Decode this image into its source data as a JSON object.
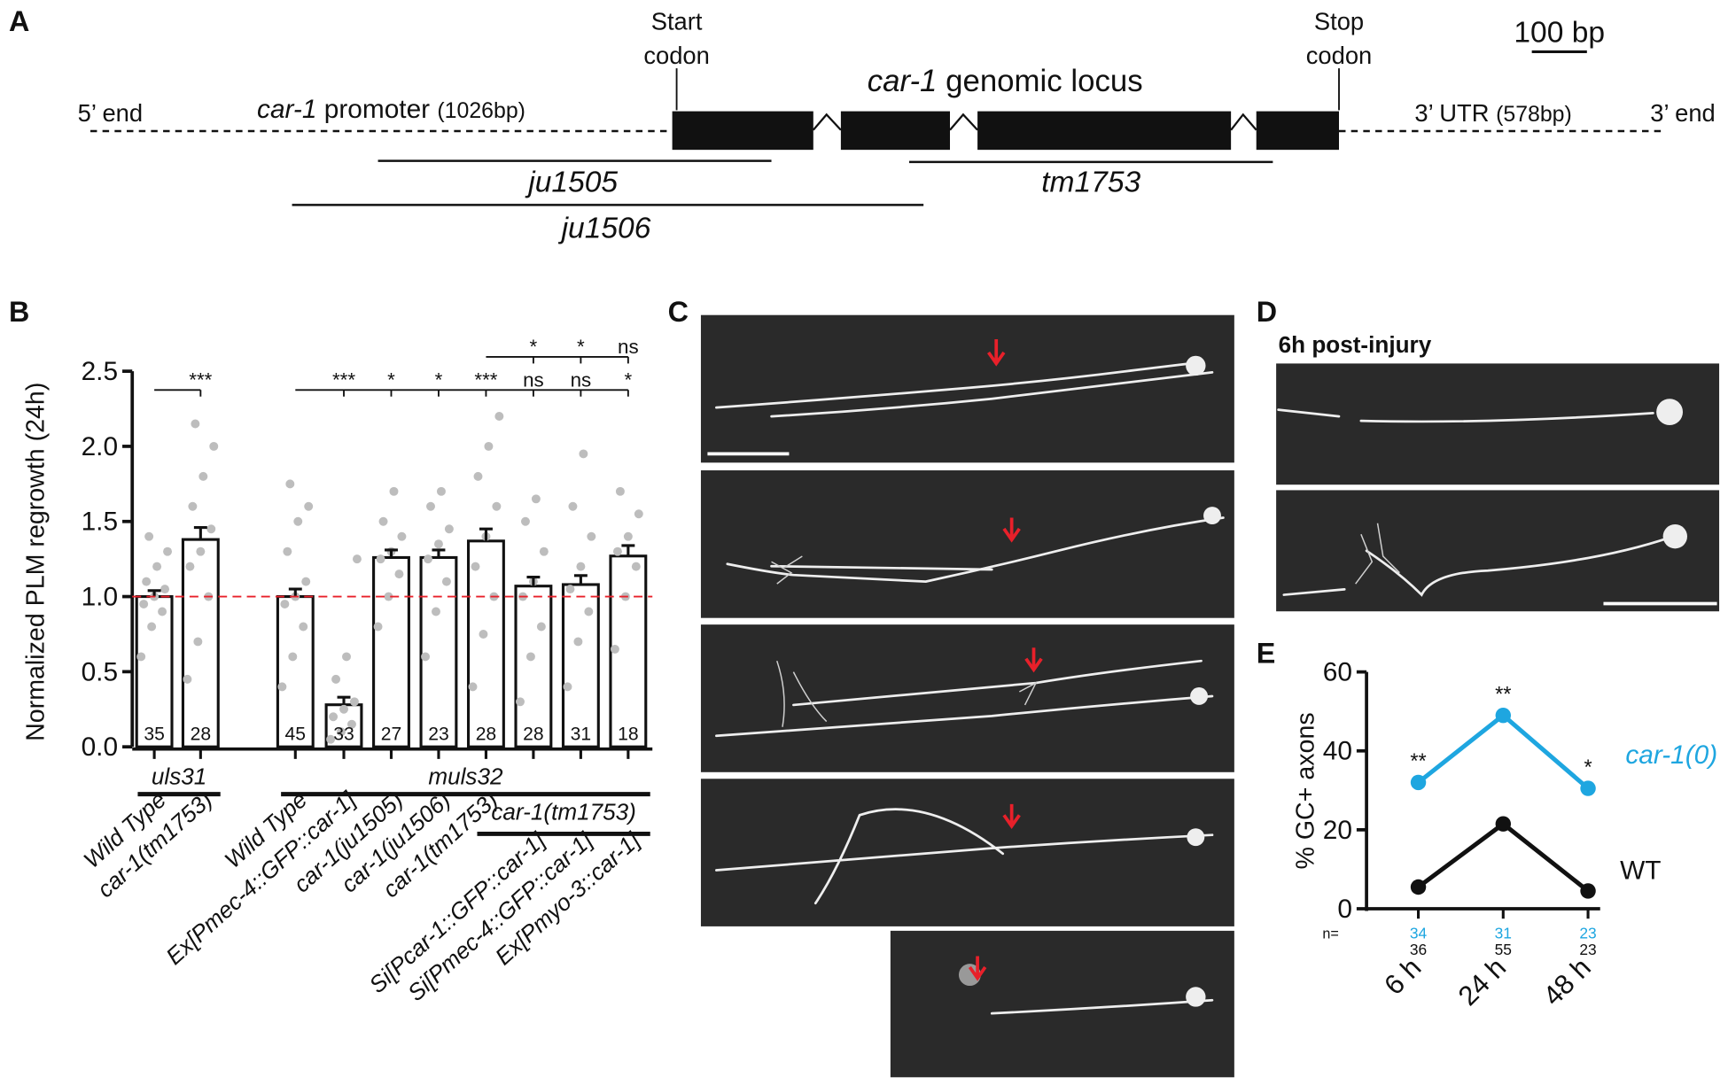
{
  "panel_a": {
    "label": "A",
    "start_codon": [
      "Start",
      "codon"
    ],
    "stop_codon": [
      "Stop",
      "codon"
    ],
    "scale": "100 bp",
    "locus": {
      "gene": "car-1",
      "text": "genomic locus"
    },
    "five_end": "5’ end",
    "three_end": "3’ end",
    "promoter": {
      "gene": "car-1",
      "text": "promoter",
      "size": "(1026bp)"
    },
    "utr": {
      "text": "3’ UTR",
      "size": "(578bp)"
    },
    "deletions": [
      "ju1505",
      "tm1753",
      "ju1506"
    ]
  },
  "chart_data": [
    {
      "type": "bar",
      "panel": "B",
      "ylabel": "Normalized PLM regrowth (24h)",
      "categories": [
        "Wild Type",
        "car-1(tm1753)",
        "Wild Type",
        "Ex[Pmec-4::GFP::car-1]",
        "car-1(ju1505)",
        "car-1(ju1506)",
        "car-1(tm1753)",
        "Si[Pcar-1::GFP::car-1]",
        "Si[Pmec-4::GFP::car-1]",
        "Ex[Pmyo-3::car-1]"
      ],
      "values": [
        1.0,
        1.38,
        1.0,
        0.28,
        1.26,
        1.26,
        1.37,
        1.07,
        1.08,
        1.27
      ],
      "errors": [
        0.04,
        0.08,
        0.05,
        0.05,
        0.05,
        0.05,
        0.08,
        0.06,
        0.06,
        0.07
      ],
      "n": [
        35,
        28,
        45,
        33,
        27,
        23,
        28,
        28,
        31,
        18
      ],
      "points": [
        [
          0.6,
          0.8,
          0.9,
          0.95,
          1.0,
          1.05,
          1.1,
          1.2,
          1.3,
          1.4
        ],
        [
          0.45,
          0.7,
          1.0,
          1.2,
          1.3,
          1.45,
          1.6,
          1.8,
          2.0,
          2.15
        ],
        [
          0.4,
          0.6,
          0.8,
          0.95,
          1.0,
          1.1,
          1.3,
          1.5,
          1.6,
          1.75
        ],
        [
          0.05,
          0.1,
          0.15,
          0.2,
          0.25,
          0.3,
          0.45,
          0.6,
          1.25
        ],
        [
          0.8,
          1.0,
          1.15,
          1.25,
          1.3,
          1.4,
          1.5,
          1.7
        ],
        [
          0.6,
          0.9,
          1.1,
          1.25,
          1.35,
          1.45,
          1.6,
          1.7
        ],
        [
          0.4,
          0.75,
          1.0,
          1.2,
          1.4,
          1.6,
          1.8,
          2.0,
          2.2
        ],
        [
          0.3,
          0.6,
          0.8,
          1.0,
          1.1,
          1.3,
          1.5,
          1.65
        ],
        [
          0.4,
          0.7,
          0.9,
          1.05,
          1.2,
          1.4,
          1.6,
          1.95
        ],
        [
          0.65,
          1.0,
          1.2,
          1.3,
          1.4,
          1.55,
          1.7
        ]
      ],
      "sig_vs_wt": [
        null,
        "***",
        null,
        "***",
        "*",
        "*",
        "***",
        "ns",
        "ns",
        "*"
      ],
      "sig_vs_tm1753": [
        null,
        null,
        null,
        null,
        null,
        null,
        null,
        "*",
        "*",
        "ns"
      ],
      "groups": [
        "uls31",
        "muls32",
        "car-1(tm1753)"
      ],
      "ref_line": 1,
      "ref_color": "#e8202a",
      "bar_color": "#ffffff",
      "point_color": "#bdbdbd",
      "ylim": [
        0,
        2.5
      ],
      "yticks": [
        {
          "value": 0,
          "label": "0.0"
        },
        0.5,
        {
          "value": 1,
          "label": "1.0"
        },
        1.5,
        {
          "value": 2,
          "label": "2.0"
        },
        2.5
      ]
    },
    {
      "type": "line",
      "panel": "E",
      "ylabel": "% GC+ axons",
      "categories": [
        "6 h",
        "24 h",
        "48 h"
      ],
      "n_label": "n=",
      "series": [
        {
          "name": "car-1(0)",
          "color": "#1ea6e0",
          "values": [
            32,
            49,
            30.5
          ],
          "n": [
            34,
            31,
            23
          ],
          "sig": [
            "**",
            "**",
            "*"
          ]
        },
        {
          "name": "WT",
          "color": "#111111",
          "values": [
            5.5,
            21.5,
            4.5
          ],
          "n": [
            36,
            55,
            23
          ]
        }
      ],
      "ylim": [
        0,
        60
      ],
      "yticks": [
        0,
        20,
        40,
        60
      ]
    }
  ],
  "panel_c": {
    "label": "C"
  },
  "panel_d": {
    "label": "D",
    "caption": "6h post-injury"
  }
}
